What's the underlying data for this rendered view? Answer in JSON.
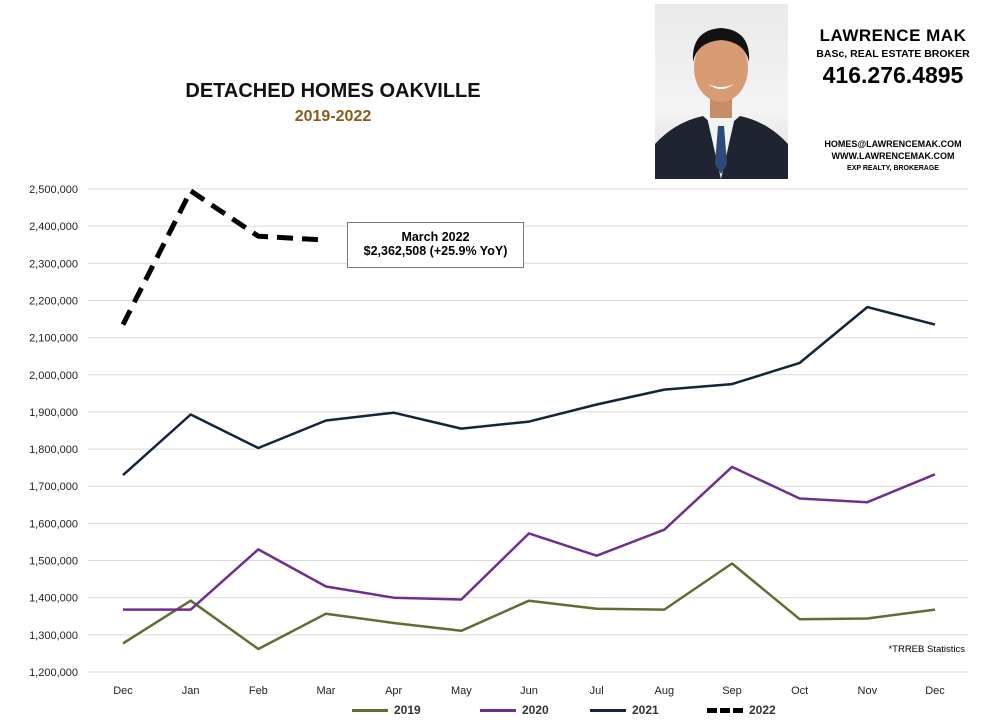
{
  "chart_data": {
    "type": "line",
    "title": "DETACHED HOMES OAKVILLE",
    "subtitle": "2019-2022",
    "categories": [
      "Dec",
      "Jan",
      "Feb",
      "Mar",
      "Apr",
      "May",
      "Jun",
      "Jul",
      "Aug",
      "Sep",
      "Oct",
      "Nov",
      "Dec"
    ],
    "ylim": [
      1200000,
      2500000
    ],
    "yticks": [
      "1,200,000",
      "1,300,000",
      "1,400,000",
      "1,500,000",
      "1,600,000",
      "1,700,000",
      "1,800,000",
      "1,900,000",
      "2,000,000",
      "2,100,000",
      "2,200,000",
      "2,300,000",
      "2,400,000",
      "2,500,000"
    ],
    "grid": true,
    "legend_position": "bottom",
    "series": [
      {
        "name": "2019",
        "color": "#5e6f32",
        "style": "solid",
        "values": [
          1277000,
          1392000,
          1262000,
          1357000,
          1332000,
          1311000,
          1392000,
          1370000,
          1368000,
          1492000,
          1342000,
          1344000,
          1368000
        ]
      },
      {
        "name": "2020",
        "color": "#6f2f8f",
        "style": "solid",
        "values": [
          1368000,
          1368000,
          1530000,
          1430000,
          1400000,
          1395000,
          1573000,
          1513000,
          1583000,
          1752000,
          1667000,
          1657000,
          1732000
        ]
      },
      {
        "name": "2021",
        "color": "#14243a",
        "style": "solid",
        "values": [
          1730000,
          1893000,
          1803000,
          1877000,
          1898000,
          1855000,
          1874000,
          1920000,
          1960000,
          1975000,
          2032000,
          2182000,
          2135000
        ]
      },
      {
        "name": "2022",
        "color": "#000000",
        "style": "dashed",
        "values": [
          2135000,
          2495000,
          2373000,
          2362508,
          null,
          null,
          null,
          null,
          null,
          null,
          null,
          null,
          null
        ]
      }
    ],
    "annotation": {
      "line1": "March 2022",
      "line2": "$2,362,508  (+25.9%  YoY)"
    },
    "source_note": "*TRREB Statistics"
  },
  "card": {
    "name": "LAWRENCE MAK",
    "credentials": "BASc, REAL ESTATE BROKER",
    "phone": "416.276.4895",
    "email": "HOMES@LAWRENCEMAK.COM",
    "website": "WWW.LAWRENCEMAK.COM",
    "brokerage": "EXP REALTY, BROKERAGE",
    "photo_icon": "person-portrait-icon"
  }
}
